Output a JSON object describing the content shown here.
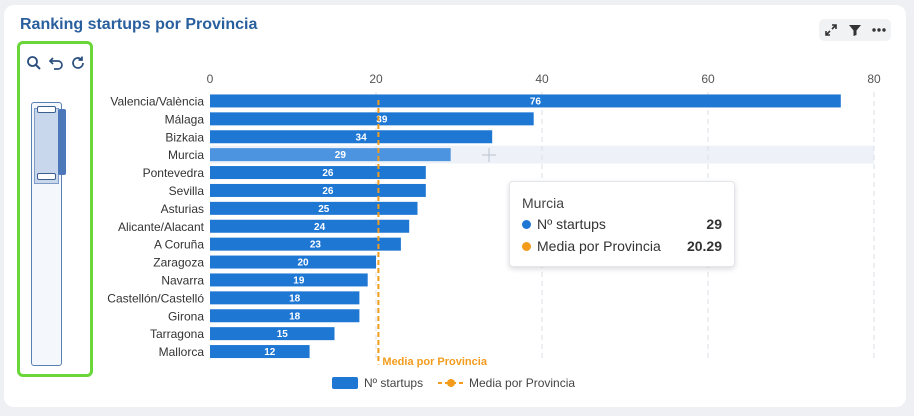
{
  "title": "Ranking startups por Provincia",
  "colors": {
    "bar": "#1f77d4",
    "bar_highlight": "#4d94e0",
    "average": "#f39c1c",
    "title": "#2a5f9e"
  },
  "toolbar": {
    "icons": [
      "expand-icon",
      "filter-icon",
      "more-icon"
    ]
  },
  "zoom_controls": {
    "icons": [
      "zoom-icon",
      "undo-zoom-icon",
      "reset-zoom-icon"
    ]
  },
  "chart_data": {
    "type": "bar",
    "orientation": "horizontal",
    "categories": [
      "Valencia/València",
      "Málaga",
      "Bizkaia",
      "Murcia",
      "Pontevedra",
      "Sevilla",
      "Asturias",
      "Alicante/Alacant",
      "A Coruña",
      "Zaragoza",
      "Navarra",
      "Castellón/Castelló",
      "Girona",
      "Tarragona",
      "Mallorca"
    ],
    "series": [
      {
        "name": "Nº startups",
        "values": [
          76,
          39,
          34,
          29,
          26,
          26,
          25,
          24,
          23,
          20,
          19,
          18,
          18,
          15,
          12
        ]
      }
    ],
    "average_line": {
      "name": "Media por Provincia",
      "value": 20.29,
      "label": "Media por Provincia"
    },
    "xlim": [
      0,
      80
    ],
    "xticks": [
      0,
      20,
      40,
      60,
      80
    ],
    "grid": true,
    "legend_position": "bottom",
    "highlighted_category": "Murcia"
  },
  "tooltip": {
    "title": "Murcia",
    "rows": [
      {
        "label": "Nº startups",
        "value": "29"
      },
      {
        "label": "Media por Provincia",
        "value": "20.29"
      }
    ]
  },
  "legend": [
    {
      "label": "Nº startups"
    },
    {
      "label": "Media por Provincia"
    }
  ]
}
